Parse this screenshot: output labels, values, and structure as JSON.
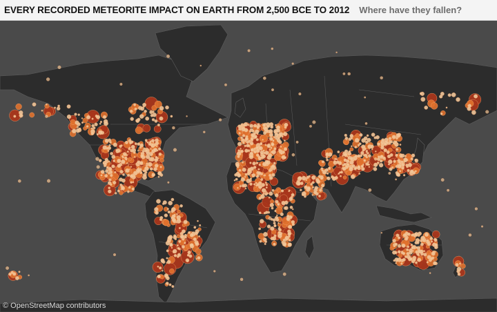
{
  "header": {
    "title": "EVERY RECORDED METEORITE IMPACT ON EARTH FROM 2,500 BCE TO 2012",
    "subtitle": "Where have they fallen?"
  },
  "map": {
    "attribution": "© OpenStreetMap contributors",
    "colors": {
      "ocean": "#4a4a4a",
      "land": "#2c2c2c",
      "border": "#5e5e5e",
      "impact_small": "#f1c79a",
      "impact_medium": "#e0712e",
      "impact_large": "#a9361b"
    },
    "density_regions": [
      {
        "name": "North America",
        "level": "very high"
      },
      {
        "name": "Europe",
        "level": "very high"
      },
      {
        "name": "Asia",
        "level": "high"
      },
      {
        "name": "Africa",
        "level": "high"
      },
      {
        "name": "South America",
        "level": "medium"
      },
      {
        "name": "Australia",
        "level": "high"
      }
    ]
  }
}
